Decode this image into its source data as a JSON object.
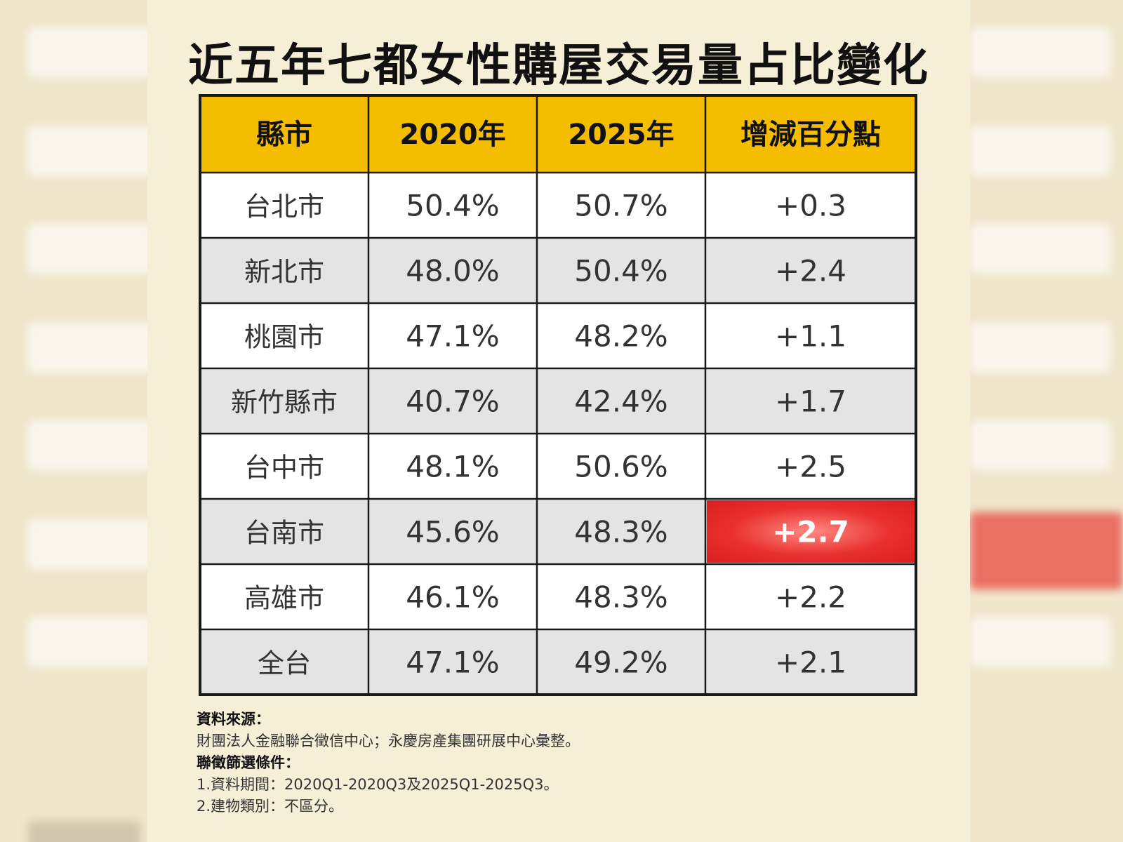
{
  "chart_data": {
    "type": "table",
    "title": "近五年七都女性購屋交易量占比變化",
    "columns": [
      "縣市",
      "2020年",
      "2025年",
      "增減百分點"
    ],
    "rows": [
      [
        "台北市",
        "50.4%",
        "50.7%",
        "+0.3"
      ],
      [
        "新北市",
        "48.0%",
        "50.4%",
        "+2.4"
      ],
      [
        "桃園市",
        "47.1%",
        "48.2%",
        "+1.1"
      ],
      [
        "新竹縣市",
        "40.7%",
        "42.4%",
        "+1.7"
      ],
      [
        "台中市",
        "48.1%",
        "50.6%",
        "+2.5"
      ],
      [
        "台南市",
        "45.6%",
        "48.3%",
        "+2.7"
      ],
      [
        "高雄市",
        "46.1%",
        "48.3%",
        "+2.2"
      ],
      [
        "全台",
        "47.1%",
        "49.2%",
        "+2.1"
      ]
    ],
    "highlight_row": 5,
    "highlight_col": 3
  },
  "colors": {
    "header": "#f5bd00",
    "highlight": "#e8302e",
    "row_alt": "#e4e4e4",
    "row": "#ffffff",
    "border": "#1a1a1a"
  },
  "notes": {
    "source_label": "資料來源：",
    "source_text": "財團法人金融聯合徵信中心；永慶房產集團研展中心彙整。",
    "filter_label": "聯徵篩選條件：",
    "filter_1": "1.資料期間：2020Q1-2020Q3及2025Q1-2025Q3。",
    "filter_2": "2.建物類別：不區分。"
  }
}
